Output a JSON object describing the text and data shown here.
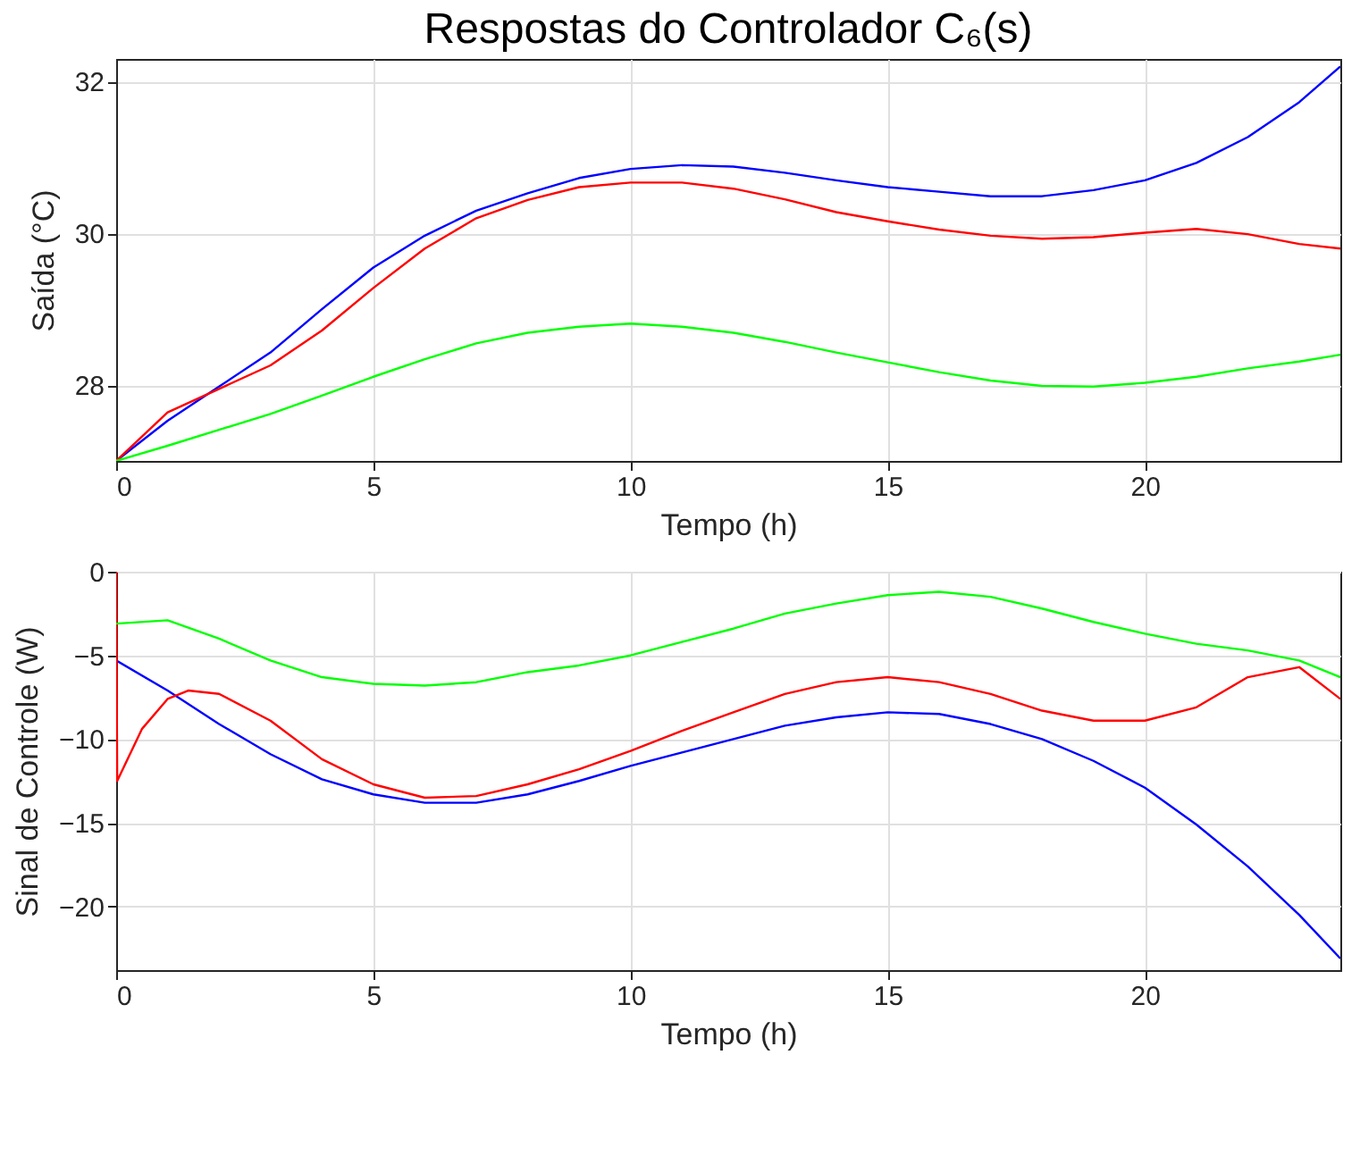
{
  "chart_data": [
    {
      "type": "line",
      "title": "Respostas do Controlador C₆(s)",
      "xlabel": "Tempo (h)",
      "ylabel": "Saída (°C)",
      "xlim": [
        0,
        23.8
      ],
      "xticks": [
        0,
        5,
        10,
        15,
        20
      ],
      "ylim": [
        27,
        32.3
      ],
      "yticks": [
        28,
        30,
        32
      ],
      "grid": true,
      "legend": false,
      "x": [
        0,
        1,
        2,
        3,
        4,
        5,
        6,
        7,
        8,
        9,
        10,
        11,
        12,
        13,
        14,
        15,
        16,
        17,
        18,
        19,
        20,
        21,
        22,
        23,
        23.8
      ],
      "series": [
        {
          "color": "#0000ff",
          "values": [
            27,
            27.53,
            27.98,
            28.43,
            29.0,
            29.55,
            29.97,
            30.3,
            30.53,
            30.73,
            30.85,
            30.9,
            30.88,
            30.8,
            30.7,
            30.61,
            30.55,
            30.49,
            30.49,
            30.57,
            30.7,
            30.93,
            31.27,
            31.73,
            32.2
          ]
        },
        {
          "color": "#ff0000",
          "values": [
            27,
            27.64,
            27.95,
            28.26,
            28.72,
            29.28,
            29.8,
            30.2,
            30.44,
            30.61,
            30.67,
            30.67,
            30.59,
            30.45,
            30.28,
            30.16,
            30.05,
            29.97,
            29.93,
            29.95,
            30.01,
            30.06,
            29.99,
            29.86,
            29.8
          ]
        },
        {
          "color": "#00ff00",
          "values": [
            27,
            27.2,
            27.41,
            27.62,
            27.86,
            28.11,
            28.34,
            28.55,
            28.69,
            28.77,
            28.81,
            28.77,
            28.69,
            28.57,
            28.43,
            28.3,
            28.17,
            28.06,
            27.99,
            27.98,
            28.03,
            28.11,
            28.22,
            28.31,
            28.4
          ]
        }
      ]
    },
    {
      "type": "line",
      "xlabel": "Tempo (h)",
      "ylabel": "Sinal de Controle (W)",
      "xlim": [
        0,
        23.8
      ],
      "xticks": [
        0,
        5,
        10,
        15,
        20
      ],
      "ylim": [
        -23.8,
        0
      ],
      "yticks": [
        -20,
        -15,
        -10,
        -5,
        0
      ],
      "grid": true,
      "legend": false,
      "x": [
        0,
        1,
        2,
        3,
        4,
        5,
        6,
        7,
        8,
        9,
        10,
        11,
        12,
        13,
        14,
        15,
        16,
        17,
        18,
        19,
        20,
        21,
        22,
        23,
        23.8
      ],
      "series": [
        {
          "color": "#0000ff",
          "values": [
            -5.3,
            -7.1,
            -9.1,
            -10.9,
            -12.4,
            -13.3,
            -13.8,
            -13.8,
            -13.3,
            -12.5,
            -11.6,
            -10.8,
            -10,
            -9.2,
            -8.7,
            -8.4,
            -8.5,
            -9.1,
            -10,
            -11.3,
            -12.9,
            -15.1,
            -17.6,
            -20.5,
            -23.1
          ]
        },
        {
          "color": "#ff0000",
          "x": [
            0,
            0.02,
            0.5,
            1,
            1.4,
            2,
            3,
            4,
            5,
            6,
            7,
            8,
            9,
            10,
            11,
            12,
            13,
            14,
            15,
            16,
            17,
            18,
            19,
            20,
            21,
            22,
            23,
            23.8
          ],
          "values": [
            0,
            -12.5,
            -9.4,
            -7.6,
            -7.1,
            -7.3,
            -8.9,
            -11.2,
            -12.7,
            -13.5,
            -13.4,
            -12.7,
            -11.8,
            -10.7,
            -9.5,
            -8.4,
            -7.3,
            -6.6,
            -6.3,
            -6.6,
            -7.3,
            -8.3,
            -8.9,
            -8.9,
            -8.1,
            -6.3,
            -5.7,
            -7.6
          ]
        },
        {
          "color": "#00ff00",
          "values": [
            -3.1,
            -2.9,
            -4,
            -5.3,
            -6.3,
            -6.7,
            -6.8,
            -6.6,
            -6,
            -5.6,
            -5,
            -4.2,
            -3.4,
            -2.5,
            -1.9,
            -1.4,
            -1.2,
            -1.5,
            -2.2,
            -3,
            -3.7,
            -4.3,
            -4.7,
            -5.3,
            -6.3
          ]
        }
      ]
    }
  ]
}
